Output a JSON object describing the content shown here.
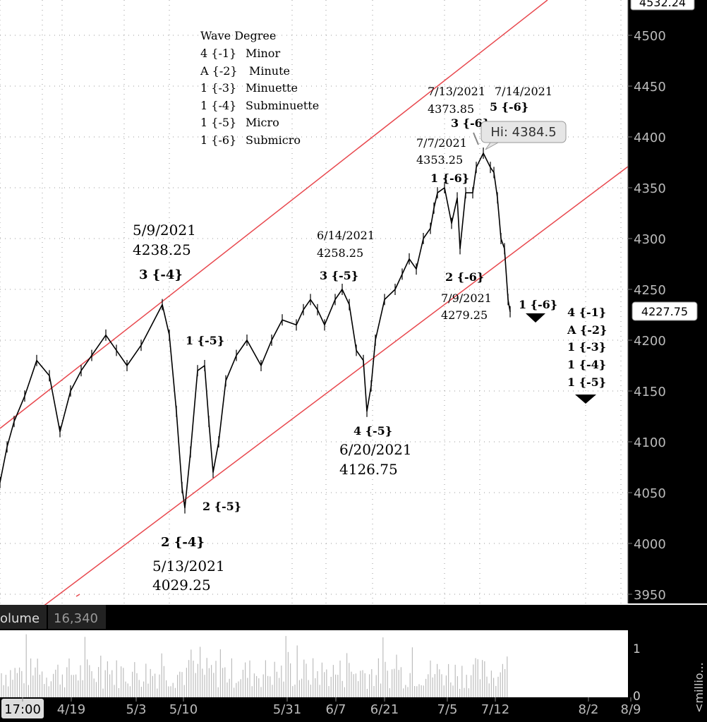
{
  "chart_data": {
    "type": "line",
    "instrument_last_price": "4227.75",
    "top_price_label": "4532.24",
    "y_ticks": [
      "4500",
      "4450",
      "4400",
      "4350",
      "4300",
      "4250",
      "4200",
      "4150",
      "4100",
      "4050",
      "4000",
      "3950"
    ],
    "x_ticks": [
      "17:00",
      "4/19",
      "5/3",
      "5/10",
      "5/31",
      "6/7",
      "6/21",
      "7/5",
      "7/12",
      "8/2",
      "8/9"
    ],
    "volume_label": "olume",
    "volume_value": "16,340",
    "volume_ticks": [
      "1",
      "0"
    ],
    "volume_unit": "<millio...",
    "high_callout": "Hi: 4384.5",
    "legend": {
      "title": "Wave Degree",
      "rows": [
        {
          "code": "4 {-1}",
          "name": "Minor"
        },
        {
          "code": "A {-2}",
          "name": "Minute"
        },
        {
          "code": "1 {-3}",
          "name": "Minuette"
        },
        {
          "code": "1 {-4}",
          "name": "Subminuette"
        },
        {
          "code": "1 {-5}",
          "name": "Micro"
        },
        {
          "code": "1 {-6}",
          "name": "Submicro"
        }
      ]
    },
    "pivots": [
      {
        "date": "5/9/2021",
        "price": 4238.25,
        "label": "3 {-4}"
      },
      {
        "date": "5/13/2021",
        "price": 4029.25,
        "label": "2 {-4}"
      },
      {
        "date": "6/14/2021",
        "price": 4258.25,
        "label": "3 {-5}"
      },
      {
        "date": "6/20/2021",
        "price": 4126.75,
        "label": "4 {-5}"
      },
      {
        "date": "7/7/2021",
        "price": 4353.25,
        "label": "1 {-6}"
      },
      {
        "date": "7/9/2021",
        "price": 4279.25,
        "label": "2 {-6}"
      },
      {
        "date": "7/13/2021",
        "price": 4373.85,
        "label": "3 {-6}"
      },
      {
        "date": "7/14/2021",
        "price": null,
        "label": "5 {-6}"
      }
    ],
    "wave_labels": {
      "w1_5": "1 {-5}",
      "w2_5": "2 {-5}",
      "w1_6_right": "1 {-6}",
      "degree_stack": [
        "4 {-1}",
        "A {-2}",
        "1 {-3}",
        "1 {-4}",
        "1 {-5}"
      ]
    },
    "price_text": {
      "p5_9_date": "5/9/2021",
      "p5_9_price": "4238.25",
      "p5_13_date": "5/13/2021",
      "p5_13_price": "4029.25",
      "p6_14_date": "6/14/2021",
      "p6_14_price": "4258.25",
      "p6_20_date": "6/20/2021",
      "p6_20_price": "4126.75",
      "p7_7_date": "7/7/2021",
      "p7_7_price": "4353.25",
      "p7_9_date": "7/9/2021",
      "p7_9_price": "4279.25",
      "p7_13_date": "7/13/2021",
      "p7_13_price": "4373.85",
      "p7_14_date": "7/14/2021"
    },
    "series": [
      {
        "values": [
          4060,
          4095,
          4120,
          4145,
          4180,
          4165,
          4110,
          4150,
          4170,
          4185,
          4205,
          4190,
          4175,
          4195,
          4235,
          4205,
          4130,
          4055,
          4035,
          4090,
          4170,
          4175,
          4120,
          4070,
          4100,
          4160,
          4185,
          4200,
          4175,
          4200,
          4220,
          4215,
          4230,
          4240,
          4230,
          4215,
          4240,
          4250,
          4235,
          4190,
          4180,
          4130,
          4155,
          4200,
          4240,
          4250,
          4265,
          4280,
          4270,
          4300,
          4310,
          4330,
          4345,
          4350,
          4315,
          4340,
          4290,
          4345,
          4345,
          4370,
          4384,
          4370,
          4365,
          4340,
          4300,
          4290,
          4240,
          4228
        ]
      }
    ]
  }
}
